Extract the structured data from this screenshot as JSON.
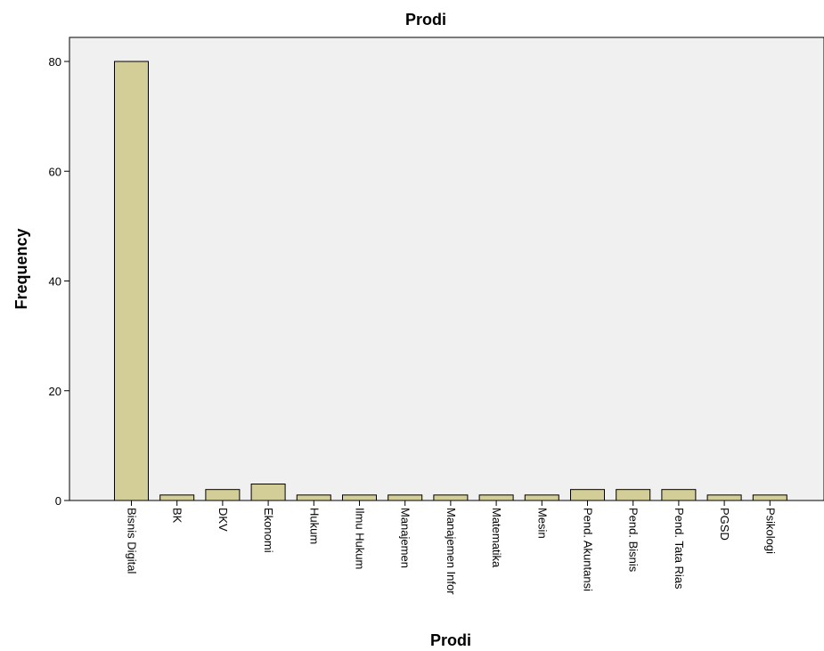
{
  "chart_data": {
    "type": "bar",
    "title": "Prodi",
    "xlabel": "Prodi",
    "ylabel": "Frequency",
    "ylim": [
      0,
      85
    ],
    "yticks": [
      0,
      20,
      40,
      60,
      80
    ],
    "categories": [
      "Bisnis Digital",
      "BK",
      "DKV",
      "Ekonomi",
      "Hukum",
      "Ilmu Hukum",
      "Manajemen",
      "Manajemen Infor",
      "Matematika",
      "Mesin",
      "Pend. Akuntansi",
      "Pend. Bisnis",
      "Pend. Tata Rias",
      "PGSD",
      "Psikologi"
    ],
    "values": [
      80,
      1,
      2,
      3,
      1,
      1,
      1,
      1,
      1,
      1,
      2,
      2,
      2,
      1,
      1
    ],
    "grid": false,
    "legend": "none",
    "colors": {
      "plot_background": "#f0f0f0",
      "bar_fill": "#d3ce97",
      "bar_stroke": "#000000",
      "axis": "#000000"
    }
  }
}
